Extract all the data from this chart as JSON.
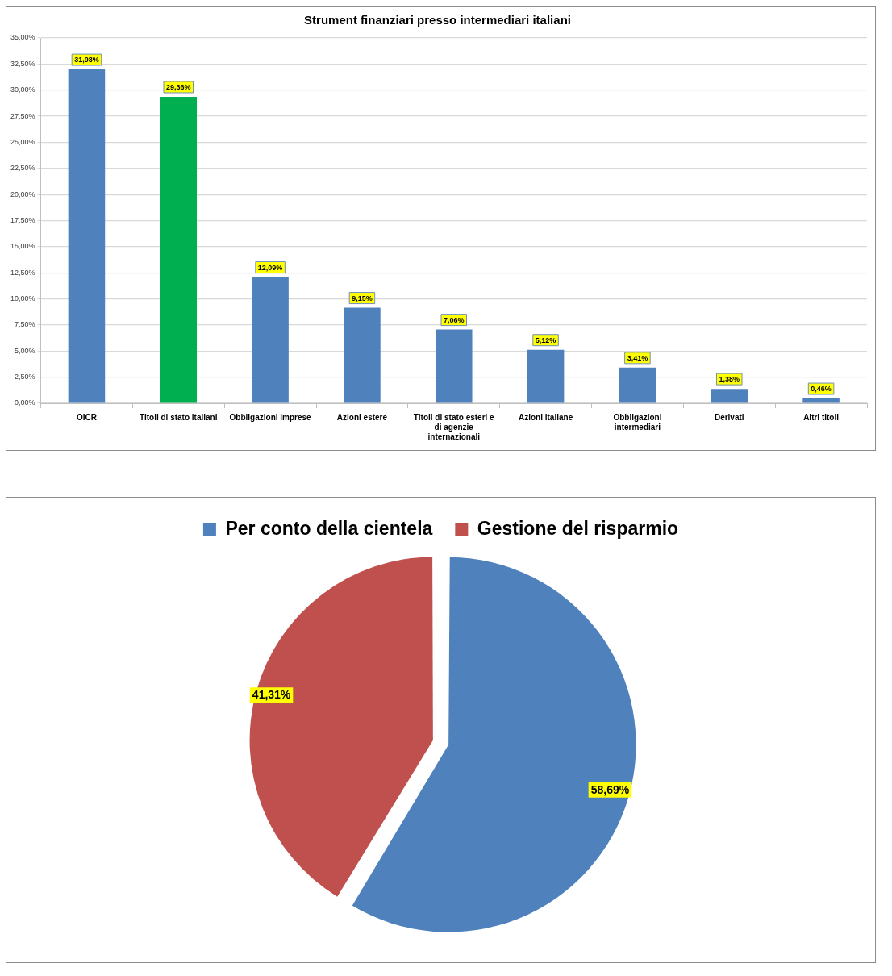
{
  "chart_data": [
    {
      "type": "bar",
      "title": "Strument finanziari presso intermediari italiani",
      "categories": [
        "OICR",
        "Titoli di stato italiani",
        "Obbligazioni imprese",
        "Azioni estere",
        "Titoli di stato esteri e di agenzie internazionali",
        "Azioni italiane",
        "Obbligazioni intermediari",
        "Derivati",
        "Altri titoli"
      ],
      "values": [
        31.98,
        29.36,
        12.09,
        9.15,
        7.06,
        5.12,
        3.41,
        1.38,
        0.46
      ],
      "colors": [
        "#4f81bd",
        "#00b050",
        "#4f81bd",
        "#4f81bd",
        "#4f81bd",
        "#4f81bd",
        "#4f81bd",
        "#4f81bd",
        "#4f81bd"
      ],
      "value_labels": [
        "31,98%",
        "29,36%",
        "12,09%",
        "9,15%",
        "7,06%",
        "5,12%",
        "3,41%",
        "1,38%",
        "0,46%"
      ],
      "ylim": [
        0,
        35
      ],
      "yticks": [
        {
          "value": 0,
          "label": "0,00%"
        },
        {
          "value": 2.5,
          "label": "2,50%"
        },
        {
          "value": 5,
          "label": "5,00%"
        },
        {
          "value": 7.5,
          "label": "7,50%"
        },
        {
          "value": 10,
          "label": "10,00%"
        },
        {
          "value": 12.5,
          "label": "12,50%"
        },
        {
          "value": 15,
          "label": "15,00%"
        },
        {
          "value": 17.5,
          "label": "17,50%"
        },
        {
          "value": 20,
          "label": "20,00%"
        },
        {
          "value": 22.5,
          "label": "22,50%"
        },
        {
          "value": 25,
          "label": "25,00%"
        },
        {
          "value": 27.5,
          "label": "27,50%"
        },
        {
          "value": 30,
          "label": "30,00%"
        },
        {
          "value": 32.5,
          "label": "32,50%"
        },
        {
          "value": 35,
          "label": "35,00%"
        }
      ],
      "grid": "y"
    },
    {
      "type": "pie",
      "categories": [
        "Per conto della cientela",
        "Gestione del risparmio"
      ],
      "values": [
        58.69,
        41.31
      ],
      "colors": [
        "#4f81bd",
        "#c0504d"
      ],
      "value_labels": [
        "58,69%",
        "41,31%"
      ],
      "legend": "top"
    }
  ]
}
